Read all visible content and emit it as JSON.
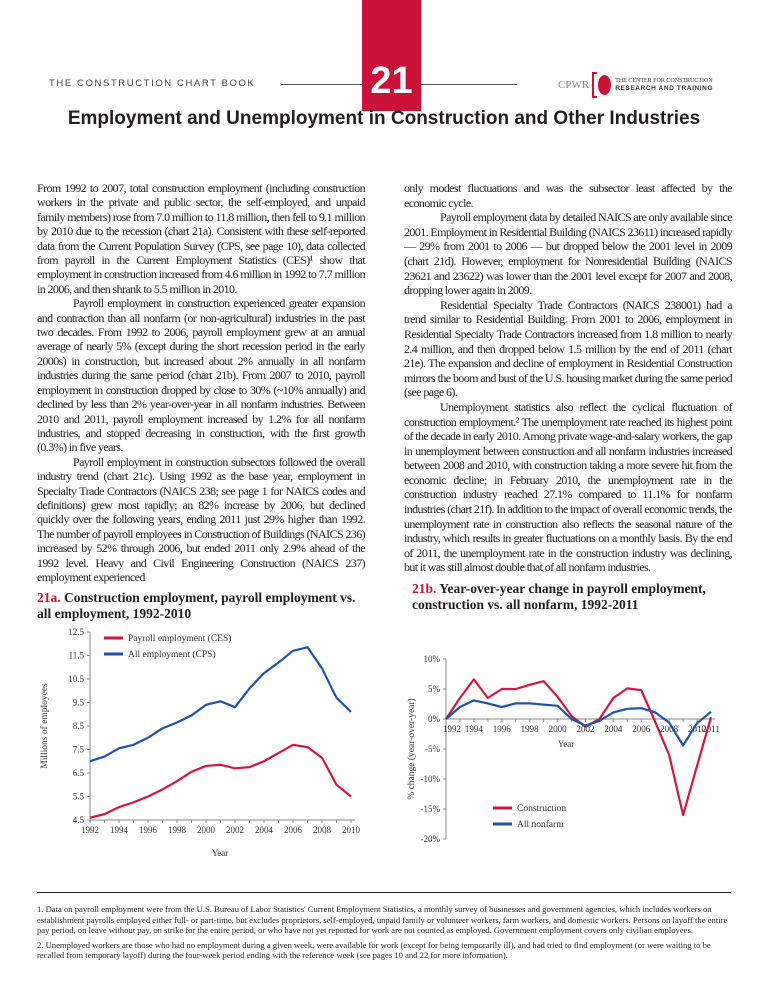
{
  "header": {
    "book": "THE CONSTRUCTION CHART BOOK",
    "chapter": "21",
    "logo": {
      "abbr": "CPWR",
      "line1": "THE CENTER FOR CONSTRUCTION",
      "line2": "RESEARCH AND TRAINING"
    }
  },
  "title": "Employment and Unemployment in Construction and Other Industries",
  "left_column": [
    "From 1992 to 2007, total construction employment (including construction workers in the private and public sector, the self-employed, and unpaid family members) rose from 7.0 million to 11.8 million, then fell to 9.1 million by 2010 due to the recession (chart 21a). Consistent with these self-reported data from the Current Population Survey (CPS, see page 10), data collected from payroll in the Current Employment Statistics (CES)¹ show that employment in construction increased from 4.6 million in 1992 to 7.7 million in 2006, and then shrank to 5.5 million in 2010.",
    "Payroll employment in construction experienced greater expansion and contraction than all nonfarm (or non-agricultural) industries in the past two decades. From 1992 to 2006, payroll employment grew at an annual average of nearly 5% (except during the short recession period in the early 2000s) in construction, but increased about 2% annually in all nonfarm industries during the same period (chart 21b). From 2007 to 2010, payroll employment in construction dropped by close to 30% (~10% annually) and declined by less than 2% year-over-year in all nonfarm industries. Between 2010 and 2011, payroll employment increased by 1.2% for all nonfarm industries, and stopped decreasing in construction, with the first growth (0.3%) in five years.",
    "Payroll employment in construction subsectors followed the overall industry trend (chart 21c). Using 1992 as the base year, employment in Specialty Trade Contractors (NAICS 238; see page 1 for NAICS codes and definitions) grew most rapidly; an 82% increase by 2006, but declined quickly over the following years, ending 2011 just 29% higher than 1992. The number of payroll employees in Construction of Buildings (NAICS 236) increased by 52% through 2006, but ended 2011 only 2.9% ahead of the 1992 level. Heavy and Civil Engineering Construction (NAICS 237) employment experienced"
  ],
  "right_column": [
    "only modest fluctuations and was the subsector least affected by the economic cycle.",
    "Payroll employment data by detailed NAICS are only available since 2001. Employment in Residential Building (NAICS 23611) increased rapidly — 29% from 2001 to 2006 — but dropped below the 2001 level in 2009 (chart 21d). However, employment for Nonresidential Building (NAICS 23621 and 23622) was lower than the 2001 level except for 2007 and 2008, dropping lower again in 2009.",
    "Residential Specialty Trade Contractors (NAICS 238001) had a trend similar to Residential Building. From 2001 to 2006, employment in Residential Specialty Trade Contractors increased from 1.8 million to nearly 2.4 million, and then dropped below 1.5 million by the end of 2011 (chart 21e). The expansion and decline of employment in Residential Construction mirrors the boom and bust of the U.S. housing market during the same period (see page 6).",
    "Unemployment statistics also reflect the cyclical fluctuation of construction employment.² The unemployment rate reached its highest point of the decade in early 2010. Among private wage-and-salary workers, the gap in unemployment between construction and all nonfarm industries increased between 2008 and 2010, with construction taking a more severe hit from the economic decline; in February 2010, the unemployment rate in the construction industry reached 27.1% compared to 11.1% for nonfarm industries (chart 21f). In addition to the impact of overall economic trends, the unemployment rate in construction also reflects the seasonal nature of the industry, which results in greater fluctuations on a monthly basis. By the end of 2011, the unemployment rate in the construction industry was declining, but it was still almost double that of all nonfarm industries."
  ],
  "footnotes": [
    "1. Data on payroll employment were from the U.S. Bureau of Labor Statistics' Current Employment Statistics, a monthly survey of businesses and government agencies, which includes workers on establishment payrolls employed either full- or part-time, but excludes proprietors, self-employed, unpaid family or volunteer workers, farm workers, and domestic workers. Persons on layoff the entire pay period, on leave without pay, on strike for the entire period, or who have not yet reported for work are not counted as employed. Government employment covers only civilian employees.",
    "2. Unemployed workers are those who had no employment during a given week, were available for work (except for being temporarily ill), and had tried to find employment (or were waiting to be recalled from temporary layoff) during the four-week period ending with the reference week (see pages 10 and 22 for more information)."
  ],
  "colors": {
    "accent": "#cc1138",
    "construction": "#d6153f",
    "nonfarm": "#2052a5"
  },
  "chart_data": [
    {
      "type": "line",
      "label": "21a.",
      "title": "Construction employment, payroll employment vs. all employment, 1992-2010",
      "xlabel": "Year",
      "ylabel": "Millions of employees",
      "ylim": [
        4.5,
        12.5
      ],
      "yticks": [
        "12.5",
        "11.5",
        "10.5",
        "9.5",
        "8.5",
        "7.5",
        "6.5",
        "5.5",
        "4.5"
      ],
      "xticks": [
        "1992",
        "1994",
        "1996",
        "1998",
        "2000",
        "2002",
        "2004",
        "2006",
        "2008",
        "2010"
      ],
      "legend": "top-left",
      "x": [
        1992,
        1993,
        1994,
        1995,
        1996,
        1997,
        1998,
        1999,
        2000,
        2001,
        2002,
        2003,
        2004,
        2005,
        2006,
        2007,
        2008,
        2009,
        2010
      ],
      "series": [
        {
          "name": "Payroll employment (CES)",
          "color": "#d6153f",
          "values": [
            4.6,
            4.75,
            5.05,
            5.25,
            5.5,
            5.8,
            6.15,
            6.55,
            6.8,
            6.85,
            6.7,
            6.75,
            7.0,
            7.35,
            7.7,
            7.6,
            7.15,
            6.0,
            5.5
          ]
        },
        {
          "name": "All employment (CPS)",
          "color": "#2052a5",
          "values": [
            7.0,
            7.2,
            7.55,
            7.7,
            8.0,
            8.4,
            8.65,
            8.95,
            9.4,
            9.55,
            9.3,
            10.1,
            10.75,
            11.2,
            11.7,
            11.85,
            10.95,
            9.7,
            9.1
          ]
        }
      ]
    },
    {
      "type": "line",
      "label": "21b.",
      "title": "Year-over-year change in payroll employment, construction vs. all nonfarm, 1992-2011",
      "xlabel": "Year",
      "ylabel": "% change (year-over-year)",
      "ylim": [
        -20,
        10
      ],
      "yticks": [
        "10%",
        "5%",
        "0%",
        "-5%",
        "-10%",
        "-15%",
        "-20%"
      ],
      "xticks": [
        "1992",
        "1994",
        "1996",
        "1998",
        "2000",
        "2002",
        "2004",
        "2006",
        "2008",
        "2010",
        "2011"
      ],
      "legend": "bottom-left",
      "x": [
        1992,
        1993,
        1994,
        1995,
        1996,
        1997,
        1998,
        1999,
        2000,
        2001,
        2002,
        2003,
        2004,
        2005,
        2006,
        2007,
        2008,
        2009,
        2010,
        2011
      ],
      "series": [
        {
          "name": "Construction",
          "color": "#d6153f",
          "values": [
            0,
            3.5,
            6.6,
            3.5,
            5.0,
            5.0,
            5.7,
            6.3,
            3.7,
            0.5,
            -1.3,
            0,
            3.5,
            5.1,
            4.8,
            -0.5,
            -6.0,
            -16.0,
            -7.8,
            0.3
          ]
        },
        {
          "name": "All nonfarm",
          "color": "#2052a5",
          "values": [
            0,
            2.0,
            3.1,
            2.6,
            2.0,
            2.6,
            2.6,
            2.4,
            2.2,
            0,
            -1.1,
            -0.3,
            1.1,
            1.7,
            1.8,
            1.1,
            -0.6,
            -4.4,
            -0.7,
            1.2
          ]
        }
      ]
    }
  ]
}
